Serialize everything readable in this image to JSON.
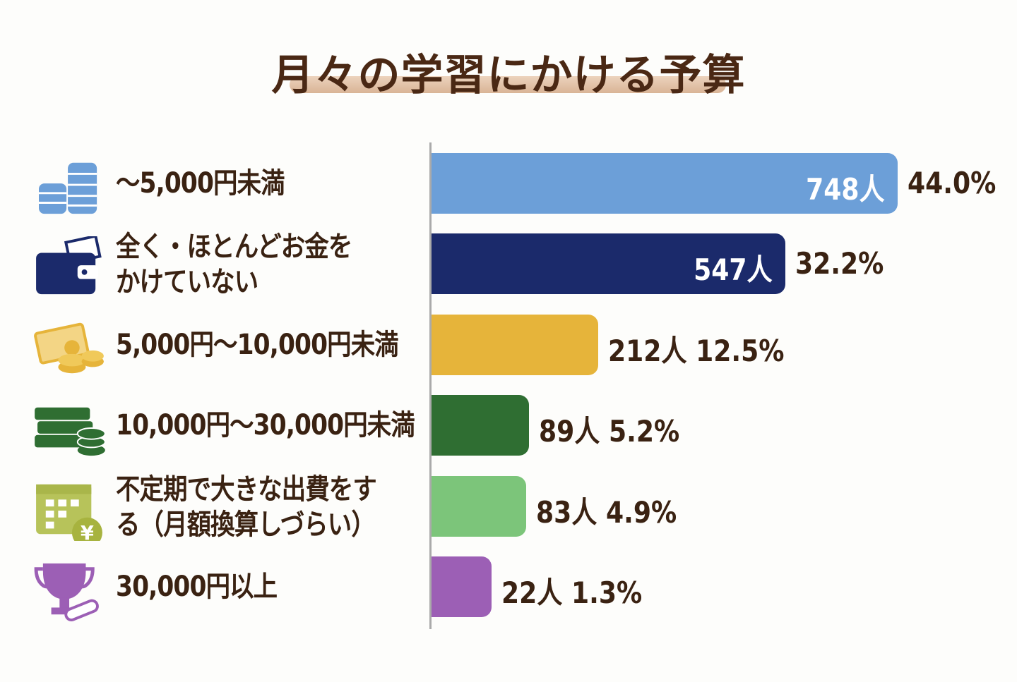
{
  "chart_data": {
    "type": "bar",
    "orientation": "horizontal",
    "title": "月々の学習にかける予算",
    "categories": [
      "～5,000円未満",
      "全く・ほとんどお金をかけていない",
      "5,000円～10,000円未満",
      "10,000円～30,000円未満",
      "不定期で大きな出費をする（月額換算しづらい）",
      "30,000円以上"
    ],
    "label_lines": [
      [
        "～5,000円未満"
      ],
      [
        "全く・ほとんどお金を",
        "かけていない"
      ],
      [
        "5,000円～10,000円未満"
      ],
      [
        "10,000円～30,000円未満"
      ],
      [
        "不定期で大きな出費をす",
        "る（月額換算しづらい）"
      ],
      [
        "30,000円以上"
      ]
    ],
    "values": [
      748,
      547,
      212,
      89,
      83,
      22
    ],
    "value_labels": [
      "748人",
      "547人",
      "212人",
      "89人",
      "83人",
      "22人"
    ],
    "percent_labels": [
      "44.0%",
      "32.2%",
      "12.5%",
      "5.2%",
      "4.9%",
      "1.3%"
    ],
    "percents": [
      44.0,
      32.2,
      12.5,
      5.2,
      4.9,
      1.3
    ],
    "colors": [
      "#6c9fd8",
      "#1b2a6b",
      "#e6b43a",
      "#2f6e32",
      "#7cc57a",
      "#9c5fb5"
    ],
    "icons": [
      "coin-stack-icon",
      "wallet-icon",
      "cash-coins-icon",
      "books-coins-icon",
      "calendar-yen-icon",
      "trophy-diploma-icon"
    ],
    "grid": false,
    "legend": "none"
  }
}
